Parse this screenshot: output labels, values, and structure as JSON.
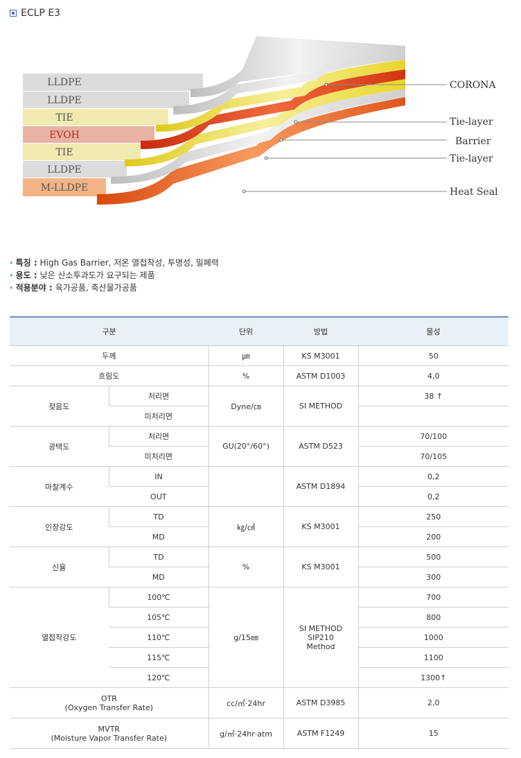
{
  "page_title": "ECLP E3",
  "diagram": {
    "left_layers": [
      "LLDPE",
      "LLDPE",
      "TIE",
      "EVOH",
      "TIE",
      "LLDPE",
      "M-LLDPE"
    ],
    "right_labels": [
      "CORONA",
      "Tie-layer",
      "Barrier",
      "Tie-layer",
      "Heat Seal"
    ],
    "colors": {
      "lldpe": "#dcdcdc",
      "tie": "#f1eab0",
      "evoh": "#e8b2a4",
      "mlldpe": "#f2b486"
    }
  },
  "features": [
    {
      "key": "특징 :",
      "value": "High Gas Barrier, 저온 열접착성, 투명성, 밀폐력"
    },
    {
      "key": "용도 :",
      "value": "낮은 산소투과도가 요구되는 제품"
    },
    {
      "key": "적용분야 :",
      "value": "육가공품, 축산물가공품"
    }
  ],
  "table": {
    "headers": [
      "구분",
      "단위",
      "방법",
      "물성"
    ],
    "thickness": {
      "label": "두께",
      "unit": "㎛",
      "method": "KS M3001",
      "value": "50"
    },
    "haze": {
      "label": "흐림도",
      "unit": "%",
      "method": "ASTM D1003",
      "value": "4,0"
    },
    "wetting": {
      "label": "젖음도",
      "sub": [
        "처리면",
        "미처리면"
      ],
      "unit": "Dyne/㎝",
      "method": "SI METHOD",
      "values": [
        "38 ↑",
        ""
      ]
    },
    "gloss": {
      "label": "광택도",
      "sub": [
        "처리면",
        "미처리면"
      ],
      "unit": "GU(20°/60°)",
      "method": "ASTM D523",
      "values": [
        "70/100",
        "70/105"
      ]
    },
    "friction": {
      "label": "마찰계수",
      "sub": [
        "IN",
        "OUT"
      ],
      "unit": "",
      "method": "ASTM D1894",
      "values": [
        "0,2",
        "0,2"
      ]
    },
    "tensile": {
      "label": "인장강도",
      "sub": [
        "TD",
        "MD"
      ],
      "unit": "㎏/㎠",
      "method": "KS M3001",
      "values": [
        "250",
        "200"
      ]
    },
    "elongation": {
      "label": "신율",
      "sub": [
        "TD",
        "MD"
      ],
      "unit": "%",
      "method": "KS M3001",
      "values": [
        "500",
        "300"
      ]
    },
    "sealing": {
      "label": "열접착강도",
      "sub": [
        "100℃",
        "105℃",
        "110℃",
        "115℃",
        "120℃"
      ],
      "unit": "g/15㎜",
      "method": [
        "SI METHOD",
        "SIP210",
        "Method"
      ],
      "values": [
        "700",
        "800",
        "1000",
        "1100",
        "1300↑"
      ]
    },
    "otr": {
      "label": [
        "OTR",
        "(Oxygen Transfer Rate)"
      ],
      "unit": "cc/㎡·24hr",
      "method": "ASTM D3985",
      "value": "2,0"
    },
    "mvtr": {
      "label": [
        "MVTR",
        "(Moisture Vapor Transfer Rate)"
      ],
      "unit": "g/㎡·24hr·atm",
      "method": "ASTM F1249",
      "value": "15"
    }
  }
}
